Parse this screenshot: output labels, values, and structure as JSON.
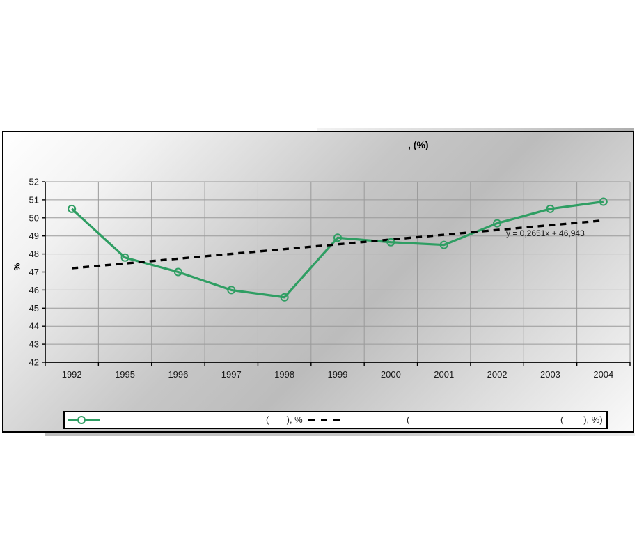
{
  "chart": {
    "title_visible": ", (%)",
    "y_axis_title": "%",
    "equation_label": "y = 0,2651x + 46,943",
    "legend": {
      "series_label": "(       ), %",
      "trend_prefix": "(",
      "trend_label": "(        ), %)"
    }
  },
  "colors": {
    "series_green": "#2f9e63",
    "trendline": "#000000",
    "gridline": "#9a9a9a",
    "axis": "#000000",
    "background_gray": "#bcbcbc"
  },
  "chart_data": {
    "type": "line",
    "title": ", (%)",
    "xlabel": "",
    "ylabel": "%",
    "categories": [
      "1992",
      "1995",
      "1996",
      "1997",
      "1998",
      "1999",
      "2000",
      "2001",
      "2002",
      "2003",
      "2004"
    ],
    "series": [
      {
        "name": "(       ), %",
        "style": "solid line with open circle markers",
        "color": "#2f9e63",
        "values": [
          50.5,
          47.8,
          47.0,
          46.0,
          45.6,
          48.9,
          48.65,
          48.5,
          49.7,
          50.5,
          50.9
        ]
      }
    ],
    "trendline": {
      "name": "(        ), %)",
      "style": "dashed",
      "color": "#000000",
      "equation": "y = 0,2651x + 46,943",
      "slope": 0.2651,
      "intercept": 46.943,
      "x_start": 1,
      "x_end": 11
    },
    "ylim": [
      42,
      52
    ],
    "ytick_step": 1,
    "grid": true,
    "legend_position": "bottom"
  }
}
